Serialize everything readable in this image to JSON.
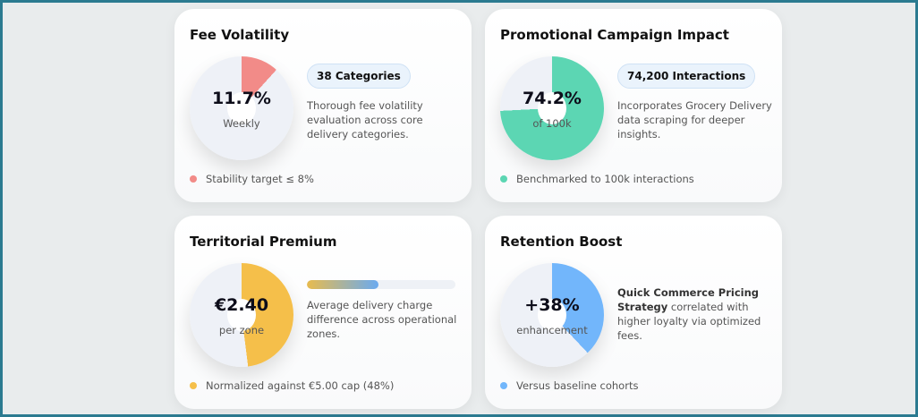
{
  "cards": [
    {
      "title": "Fee Volatility",
      "value": "11.7%",
      "sub": "Weekly",
      "percent": 11.7,
      "color": "#f28b88",
      "badge": "38 Categories",
      "desc": "Thorough fee volatility evaluation across core delivery categories.",
      "foot": "Stability target ≤ 8%"
    },
    {
      "title": "Promotional Campaign Impact",
      "value": "74.2%",
      "sub": "of 100k",
      "percent": 74.2,
      "color": "#5cd6b3",
      "badge": "74,200 Interactions",
      "desc": "Incorporates Grocery Delivery data scraping for deeper insights.",
      "foot": "Benchmarked to 100k interactions"
    },
    {
      "title": "Territorial Premium",
      "value": "€2.40",
      "sub": "per zone",
      "percent": 48,
      "color": "#f5bf4a",
      "progress": 48,
      "desc": "Average delivery charge difference across operational zones.",
      "foot": "Normalized against €5.00 cap (48%)"
    },
    {
      "title": "Retention Boost",
      "value": "+38%",
      "sub": "enhancement",
      "percent": 38,
      "color": "#72b6fb",
      "desc_bold": "Quick Commerce Pricing Strategy",
      "desc": " correlated with higher loyalty via optimized fees.",
      "foot": "Versus baseline cohorts"
    }
  ]
}
